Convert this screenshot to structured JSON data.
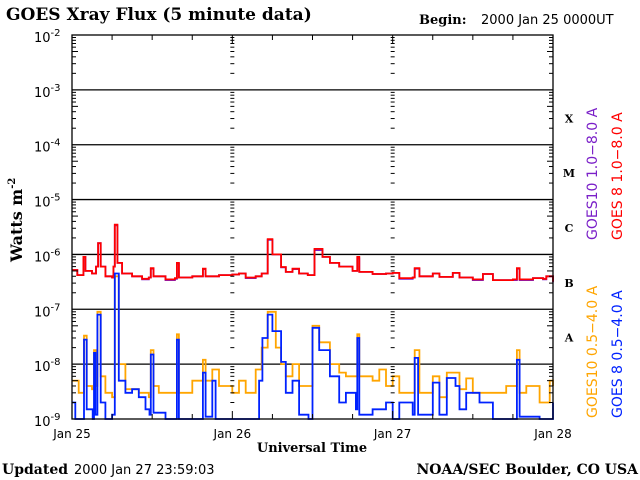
{
  "chart_data": {
    "type": "line",
    "title": "GOES Xray Flux (5 minute data)",
    "begin_label": "Begin:",
    "begin_value": "2000 Jan 25 0000UT",
    "xlabel": "Universal Time",
    "ylabel": "Watts m",
    "ylabel_exp": "-2",
    "y_scale": "log",
    "ylim": [
      1e-09,
      0.01
    ],
    "y_ticks": [
      {
        "base": "10",
        "exp": "-2"
      },
      {
        "base": "10",
        "exp": "-3"
      },
      {
        "base": "10",
        "exp": "-4"
      },
      {
        "base": "10",
        "exp": "-5"
      },
      {
        "base": "10",
        "exp": "-6"
      },
      {
        "base": "10",
        "exp": "-7"
      },
      {
        "base": "10",
        "exp": "-8"
      },
      {
        "base": "10",
        "exp": "-9"
      }
    ],
    "x_unit": "hours since begin",
    "xlim": [
      0,
      72
    ],
    "x_ticks": [
      "Jan 25",
      "Jan 26",
      "Jan 27",
      "Jan 28"
    ],
    "class_labels": [
      "X",
      "M",
      "C",
      "B",
      "A"
    ],
    "grid": "horizontal lines at decades 1e-3 to 1e-8",
    "footer_left_bold": "Updated",
    "footer_left": "2000 Jan 27 23:59:03",
    "footer_right": "NOAA/SEC Boulder, CO USA",
    "series": [
      {
        "name": "GOES10 1.0−8.0 A",
        "color": "#7a1fc8",
        "points": [
          [
            0,
            5.2e-07
          ],
          [
            0.8,
            4.2e-07
          ],
          [
            1.5,
            4.2e-07
          ],
          [
            1.7,
            9e-07
          ],
          [
            2,
            5e-07
          ],
          [
            3,
            4.5e-07
          ],
          [
            3.6,
            6e-07
          ],
          [
            3.9,
            1.6e-06
          ],
          [
            4.3,
            6e-07
          ],
          [
            5,
            4e-07
          ],
          [
            6,
            3.8e-07
          ],
          [
            6.2,
            6e-07
          ],
          [
            6.4,
            3.4e-06
          ],
          [
            6.8,
            7e-07
          ],
          [
            7.5,
            4.5e-07
          ],
          [
            9,
            4e-07
          ],
          [
            10.5,
            3.5e-07
          ],
          [
            11.5,
            3.8e-07
          ],
          [
            11.8,
            5.5e-07
          ],
          [
            12.2,
            4e-07
          ],
          [
            14,
            3.4e-07
          ],
          [
            15.4,
            3.6e-07
          ],
          [
            15.7,
            6.8e-07
          ],
          [
            16,
            3.8e-07
          ],
          [
            18,
            4e-07
          ],
          [
            19.4,
            4e-07
          ],
          [
            19.6,
            5.4e-07
          ],
          [
            20,
            4e-07
          ],
          [
            22,
            4.2e-07
          ],
          [
            24,
            4.3e-07
          ],
          [
            25,
            4.5e-07
          ],
          [
            26,
            3.7e-07
          ],
          [
            27.5,
            4e-07
          ],
          [
            28.4,
            4.5e-07
          ],
          [
            29.3,
            1.85e-06
          ],
          [
            30,
            1e-06
          ],
          [
            31.3,
            5.8e-07
          ],
          [
            32,
            4.8e-07
          ],
          [
            33,
            5.4e-07
          ],
          [
            34,
            4.5e-07
          ],
          [
            35.3,
            4.2e-07
          ],
          [
            36.3,
            1.2e-06
          ],
          [
            37.5,
            9e-07
          ],
          [
            38.6,
            7e-07
          ],
          [
            40,
            6e-07
          ],
          [
            42,
            5e-07
          ],
          [
            42.5,
            5e-07
          ],
          [
            42.7,
            8.5e-07
          ],
          [
            43,
            4.8e-07
          ],
          [
            45,
            4.4e-07
          ],
          [
            47,
            4.5e-07
          ],
          [
            48,
            4.6e-07
          ],
          [
            49,
            3.6e-07
          ],
          [
            51,
            3.8e-07
          ],
          [
            51.3,
            5.5e-07
          ],
          [
            52,
            4e-07
          ],
          [
            54,
            4.5e-07
          ],
          [
            55,
            3.9e-07
          ],
          [
            57,
            4.6e-07
          ],
          [
            58,
            3.8e-07
          ],
          [
            60,
            3.4e-07
          ],
          [
            61.5,
            4.4e-07
          ],
          [
            63,
            3.4e-07
          ],
          [
            66,
            3.4e-07
          ],
          [
            66.6,
            5.5e-07
          ],
          [
            67,
            3.4e-07
          ],
          [
            69,
            3.7e-07
          ],
          [
            70.5,
            3.5e-07
          ],
          [
            71,
            4e-07
          ],
          [
            72,
            3.1e-07
          ]
        ]
      },
      {
        "name": "GOES 8 1.0−8.0 A",
        "color": "#ff0000",
        "points": [
          [
            0,
            5.2e-07
          ],
          [
            0.8,
            4.2e-07
          ],
          [
            1.5,
            4.2e-07
          ],
          [
            1.7,
            9e-07
          ],
          [
            2,
            5e-07
          ],
          [
            3,
            4.5e-07
          ],
          [
            3.6,
            6e-07
          ],
          [
            3.9,
            1.6e-06
          ],
          [
            4.3,
            6e-07
          ],
          [
            5,
            4e-07
          ],
          [
            6,
            3.8e-07
          ],
          [
            6.2,
            6e-07
          ],
          [
            6.4,
            3.5e-06
          ],
          [
            6.8,
            7e-07
          ],
          [
            7.5,
            4.5e-07
          ],
          [
            9,
            4e-07
          ],
          [
            10.5,
            3.6e-07
          ],
          [
            11.5,
            3.8e-07
          ],
          [
            11.8,
            5.6e-07
          ],
          [
            12.2,
            4e-07
          ],
          [
            14,
            3.5e-07
          ],
          [
            15.4,
            3.7e-07
          ],
          [
            15.7,
            7e-07
          ],
          [
            16,
            3.8e-07
          ],
          [
            18,
            4e-07
          ],
          [
            19.4,
            4e-07
          ],
          [
            19.6,
            5.5e-07
          ],
          [
            20,
            4e-07
          ],
          [
            22,
            4.2e-07
          ],
          [
            24,
            4.3e-07
          ],
          [
            25,
            4.5e-07
          ],
          [
            26,
            3.8e-07
          ],
          [
            27.5,
            4e-07
          ],
          [
            28.4,
            4.5e-07
          ],
          [
            29.3,
            1.9e-06
          ],
          [
            30,
            1e-06
          ],
          [
            31.3,
            5.9e-07
          ],
          [
            32,
            4.8e-07
          ],
          [
            33,
            5.5e-07
          ],
          [
            34,
            4.5e-07
          ],
          [
            35.3,
            4.2e-07
          ],
          [
            36.3,
            1.26e-06
          ],
          [
            37.5,
            9e-07
          ],
          [
            38.6,
            7e-07
          ],
          [
            40,
            6e-07
          ],
          [
            42,
            5e-07
          ],
          [
            42.5,
            5e-07
          ],
          [
            42.7,
            9e-07
          ],
          [
            43,
            4.8e-07
          ],
          [
            45,
            4.4e-07
          ],
          [
            47,
            4.5e-07
          ],
          [
            48,
            4.6e-07
          ],
          [
            49,
            3.7e-07
          ],
          [
            51,
            3.8e-07
          ],
          [
            51.3,
            5.6e-07
          ],
          [
            52,
            4e-07
          ],
          [
            54,
            4.5e-07
          ],
          [
            55,
            3.9e-07
          ],
          [
            57,
            4.6e-07
          ],
          [
            58,
            3.8e-07
          ],
          [
            60,
            3.5e-07
          ],
          [
            61.5,
            4.4e-07
          ],
          [
            63,
            3.4e-07
          ],
          [
            66,
            3.5e-07
          ],
          [
            66.6,
            5.6e-07
          ],
          [
            67,
            3.5e-07
          ],
          [
            69,
            3.7e-07
          ],
          [
            70.5,
            3.6e-07
          ],
          [
            71,
            4e-07
          ],
          [
            72,
            3.2e-07
          ]
        ]
      },
      {
        "name": "GOES10 0.5−4.0 A",
        "color": "#ffa500",
        "points": [
          [
            0,
            5e-09
          ],
          [
            1,
            3e-09
          ],
          [
            1.7,
            3e-09
          ],
          [
            1.8,
            3.3e-08
          ],
          [
            2.2,
            4e-09
          ],
          [
            3,
            3.5e-09
          ],
          [
            3.3,
            1.8e-08
          ],
          [
            3.6,
            4e-09
          ],
          [
            3.8,
            9e-08
          ],
          [
            4.3,
            6e-09
          ],
          [
            5,
            3e-09
          ],
          [
            6,
            2.5e-09
          ],
          [
            6.4,
            4e-07
          ],
          [
            7,
            1e-08
          ],
          [
            8,
            3.5e-09
          ],
          [
            10,
            3e-09
          ],
          [
            11.5,
            2.5e-09
          ],
          [
            11.8,
            1.8e-08
          ],
          [
            12.2,
            4e-09
          ],
          [
            13,
            3e-09
          ],
          [
            15.5,
            3e-09
          ],
          [
            15.7,
            3.5e-08
          ],
          [
            16,
            3e-09
          ],
          [
            17.5,
            3e-09
          ],
          [
            18,
            5e-09
          ],
          [
            19.6,
            1.2e-08
          ],
          [
            20,
            5e-09
          ],
          [
            21,
            8e-09
          ],
          [
            22,
            4e-09
          ],
          [
            24,
            3e-09
          ],
          [
            25,
            5e-09
          ],
          [
            26,
            3e-09
          ],
          [
            27.2,
            3e-09
          ],
          [
            27.5,
            8e-09
          ],
          [
            28.4,
            2e-08
          ],
          [
            29.3,
            9e-08
          ],
          [
            30.5,
            2e-08
          ],
          [
            31.3,
            1e-08
          ],
          [
            32,
            6e-09
          ],
          [
            33,
            1e-08
          ],
          [
            34,
            4e-09
          ],
          [
            35.6,
            4e-09
          ],
          [
            36,
            5e-08
          ],
          [
            37,
            2.5e-08
          ],
          [
            38.6,
            1e-08
          ],
          [
            40,
            7e-09
          ],
          [
            41,
            6e-09
          ],
          [
            42.7,
            3.5e-08
          ],
          [
            43,
            6e-09
          ],
          [
            45,
            5e-09
          ],
          [
            46,
            8e-09
          ],
          [
            47,
            4e-09
          ],
          [
            48,
            6e-09
          ],
          [
            49,
            3e-09
          ],
          [
            51.3,
            1.8e-08
          ],
          [
            52,
            3e-09
          ],
          [
            54,
            6e-09
          ],
          [
            55,
            2.5e-09
          ],
          [
            56.1,
            7e-09
          ],
          [
            57.4,
            7e-09
          ],
          [
            58,
            3.5e-09
          ],
          [
            59,
            5.5e-09
          ],
          [
            60,
            3e-09
          ],
          [
            62,
            3e-09
          ],
          [
            64,
            3e-09
          ],
          [
            65,
            4e-09
          ],
          [
            66.6,
            1.8e-08
          ],
          [
            67,
            3e-09
          ],
          [
            68,
            4e-09
          ],
          [
            70,
            2e-09
          ],
          [
            71.5,
            5e-09
          ],
          [
            72,
            4e-09
          ]
        ]
      },
      {
        "name": "GOES 8 0.5−4.0 A",
        "color": "#0022ff",
        "points": [
          [
            0,
            2e-09
          ],
          [
            0.5,
            1e-09
          ],
          [
            1.7,
            1e-09
          ],
          [
            1.8,
            2.8e-08
          ],
          [
            2.2,
            1.5e-09
          ],
          [
            3.1,
            1e-09
          ],
          [
            3.3,
            1.6e-08
          ],
          [
            3.5,
            1.2e-09
          ],
          [
            3.8,
            8e-08
          ],
          [
            4.3,
            2e-09
          ],
          [
            5,
            1e-09
          ],
          [
            6,
            1.2e-09
          ],
          [
            6.4,
            4.5e-07
          ],
          [
            7,
            5e-09
          ],
          [
            8,
            3e-09
          ],
          [
            9,
            3.5e-09
          ],
          [
            10,
            2.5e-09
          ],
          [
            11,
            1.5e-09
          ],
          [
            11.6,
            1.2e-09
          ],
          [
            11.8,
            1.5e-08
          ],
          [
            12.2,
            1.3e-09
          ],
          [
            14,
            1e-09
          ],
          [
            15.6,
            1e-09
          ],
          [
            15.7,
            2.8e-08
          ],
          [
            16,
            1e-09
          ],
          [
            19,
            1e-09
          ],
          [
            19.6,
            7e-09
          ],
          [
            20,
            1.1e-09
          ],
          [
            21,
            5e-09
          ],
          [
            21.5,
            1e-09
          ],
          [
            24,
            1e-09
          ],
          [
            27.5,
            1e-09
          ],
          [
            28,
            5e-09
          ],
          [
            28.5,
            3e-08
          ],
          [
            29.3,
            8e-08
          ],
          [
            30,
            4e-08
          ],
          [
            31.3,
            1.1e-08
          ],
          [
            32,
            3e-09
          ],
          [
            33,
            5e-09
          ],
          [
            34,
            1.2e-09
          ],
          [
            35.4,
            1e-09
          ],
          [
            36,
            4.6e-08
          ],
          [
            37,
            1.8e-08
          ],
          [
            38.6,
            6e-09
          ],
          [
            40,
            2e-09
          ],
          [
            41,
            3e-09
          ],
          [
            42.5,
            1.5e-09
          ],
          [
            42.7,
            3e-08
          ],
          [
            43,
            1.2e-09
          ],
          [
            45,
            1.5e-09
          ],
          [
            47,
            2e-09
          ],
          [
            48,
            1e-09
          ],
          [
            49,
            2e-09
          ],
          [
            51,
            1.2e-09
          ],
          [
            51.3,
            1.3e-08
          ],
          [
            51.8,
            1.2e-09
          ],
          [
            54,
            4.6e-09
          ],
          [
            55,
            1.2e-09
          ],
          [
            56.1,
            5.6e-09
          ],
          [
            57.4,
            4e-09
          ],
          [
            58,
            1.5e-09
          ],
          [
            59,
            3e-09
          ],
          [
            60,
            3e-09
          ],
          [
            61,
            2e-09
          ],
          [
            63,
            1e-09
          ],
          [
            66,
            1e-09
          ],
          [
            66.6,
            1.2e-08
          ],
          [
            67,
            1.1e-09
          ],
          [
            70,
            1e-09
          ],
          [
            72,
            2e-09
          ]
        ]
      }
    ]
  }
}
